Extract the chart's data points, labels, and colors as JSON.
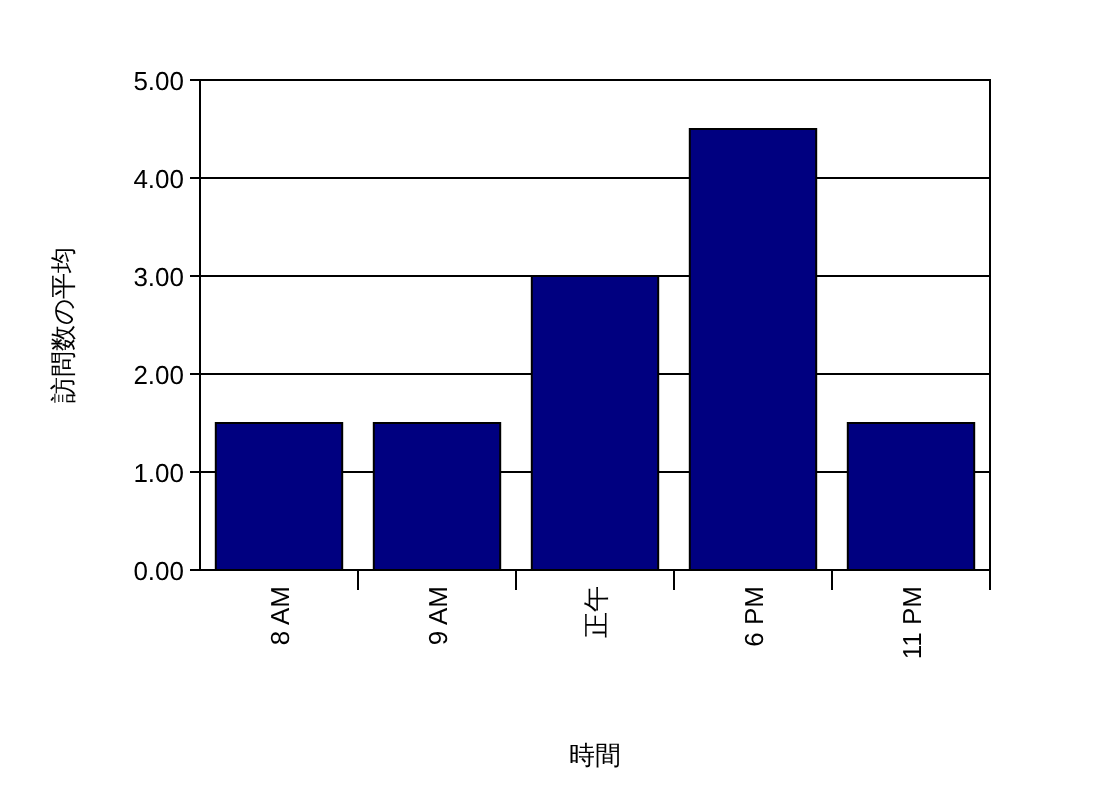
{
  "chart_data": {
    "type": "bar",
    "xlabel": "時間",
    "ylabel": "訪問数の平均",
    "categories": [
      "8 AM",
      "9 AM",
      "正午",
      "6 PM",
      "11 PM"
    ],
    "values": [
      1.5,
      1.5,
      3.0,
      4.5,
      1.5
    ],
    "color": "#000080",
    "ylim": [
      0,
      5
    ],
    "yticks": [
      {
        "value": 0,
        "label": "0.00"
      },
      {
        "value": 1,
        "label": "1.00"
      },
      {
        "value": 2,
        "label": "2.00"
      },
      {
        "value": 3,
        "label": "3.00"
      },
      {
        "value": 4,
        "label": "4.00"
      },
      {
        "value": 5,
        "label": "5.00"
      }
    ],
    "grid": "y"
  }
}
